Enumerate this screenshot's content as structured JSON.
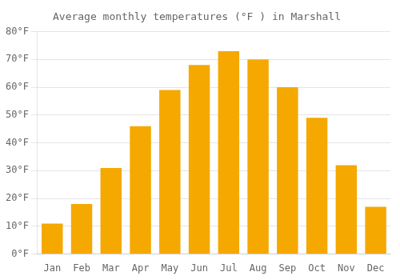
{
  "chart_data": {
    "type": "bar",
    "title": "Average monthly temperatures (°F ) in Marshall",
    "categories": [
      "Jan",
      "Feb",
      "Mar",
      "Apr",
      "May",
      "Jun",
      "Jul",
      "Aug",
      "Sep",
      "Oct",
      "Nov",
      "Dec"
    ],
    "values": [
      11,
      18,
      31,
      46,
      59,
      68,
      73,
      70,
      60,
      49,
      32,
      17
    ],
    "color": "#F5A800",
    "ylim": [
      0,
      80
    ],
    "yticks": [
      {
        "value": 0,
        "label": "0°F"
      },
      {
        "value": 10,
        "label": "10°F"
      },
      {
        "value": 20,
        "label": "20°F"
      },
      {
        "value": 30,
        "label": "30°F"
      },
      {
        "value": 40,
        "label": "40°F"
      },
      {
        "value": 50,
        "label": "50°F"
      },
      {
        "value": 60,
        "label": "60°F"
      },
      {
        "value": 70,
        "label": "70°F"
      },
      {
        "value": 80,
        "label": "80°F"
      }
    ],
    "grid": true
  }
}
